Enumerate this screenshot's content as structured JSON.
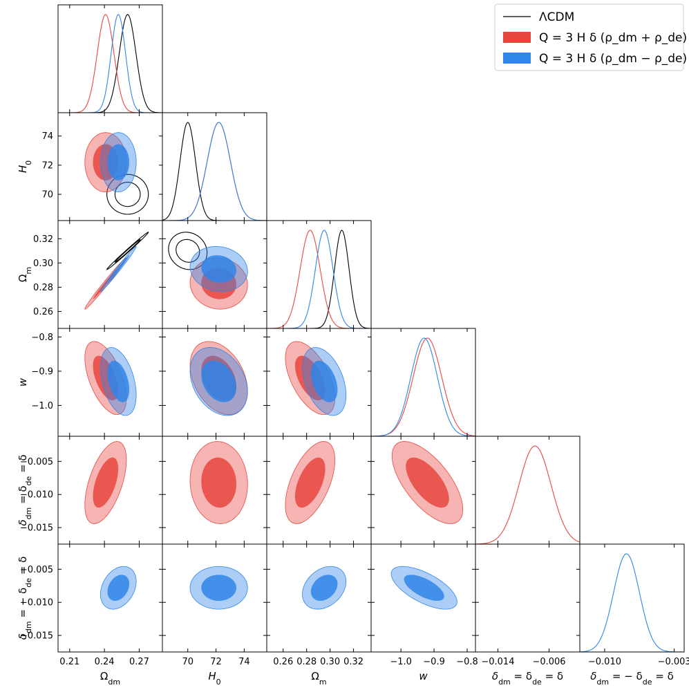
{
  "chart_data": {
    "type": "triangle",
    "title": "",
    "parameters": [
      {
        "key": "om_dm",
        "label": "Ω_dm",
        "range": [
          0.2,
          0.29
        ],
        "ticks": [
          0.21,
          0.24,
          0.27
        ],
        "tick_labels": [
          "0.21",
          "0.24",
          "0.27"
        ]
      },
      {
        "key": "h0",
        "label": "H_0",
        "range": [
          68.2,
          75.6
        ],
        "ticks": [
          70,
          72,
          74
        ],
        "tick_labels": [
          "70",
          "72",
          "74"
        ]
      },
      {
        "key": "om_m",
        "label": "Ω_m",
        "range": [
          0.246,
          0.335
        ],
        "ticks": [
          0.26,
          0.28,
          0.3,
          0.32
        ],
        "tick_labels": [
          "0.26",
          "0.28",
          "0.30",
          "0.32"
        ]
      },
      {
        "key": "w",
        "label": "w",
        "range": [
          -1.09,
          -0.775
        ],
        "ticks": [
          -1.0,
          -0.9,
          -0.8
        ],
        "tick_labels": [
          "−1.0",
          "−0.9",
          "−0.8"
        ]
      },
      {
        "key": "d1",
        "label": "δ_dm = δ_de = δ",
        "range": [
          -0.0175,
          -0.0012
        ],
        "ticks": [
          -0.014,
          -0.006
        ],
        "y_ticks": [
          -0.015,
          -0.01,
          -0.005
        ],
        "tick_labels": [
          "−0.014",
          "−0.006"
        ],
        "y_tick_labels": [
          "−0.015",
          "−0.010",
          "−0.005"
        ]
      },
      {
        "key": "d2",
        "label": "δ_dm = − δ_de = δ",
        "range": [
          -0.0125,
          -0.002
        ],
        "ticks": [
          -0.01,
          -0.003
        ],
        "y_ticks": [
          -0.015,
          -0.01,
          -0.005
        ],
        "y_range": [
          -0.0175,
          -0.0012
        ],
        "tick_labels": [
          "−0.010",
          "−0.003"
        ],
        "y_tick_labels": [
          "−0.015",
          "−0.010",
          "−0.005"
        ]
      }
    ],
    "series": [
      {
        "name": "ΛCDM",
        "style": "line",
        "color": "#000000",
        "params": [
          "om_dm",
          "h0",
          "om_m",
          "w"
        ],
        "mean": {
          "om_dm": 0.26,
          "h0": 70.0,
          "om_m": 0.31
        },
        "sigma": {
          "om_dm": 0.0072,
          "h0": 0.55,
          "om_m": 0.0062
        },
        "corr": {
          "om_dm|h0": 0.0,
          "om_dm|om_m": 0.995,
          "h0|om_m": -0.1
        }
      },
      {
        "name": "Q = 3 H δ (ρ_dm + ρ_de)",
        "style": "filled",
        "color": "#e8473e",
        "params": [
          "om_dm",
          "h0",
          "om_m",
          "w",
          "d1"
        ],
        "mean": {
          "om_dm": 0.241,
          "h0": 72.2,
          "om_m": 0.283,
          "w": -0.92,
          "d1": -0.0082
        },
        "sigma": {
          "om_dm": 0.0072,
          "h0": 0.82,
          "om_m": 0.0085,
          "w": 0.043,
          "d1": 0.0025
        },
        "corr": {
          "om_dm|h0": 0.0,
          "om_dm|om_m": 0.99,
          "om_dm|w": -0.55,
          "om_dm|d1": 0.55,
          "h0|om_m": -0.05,
          "h0|w": -0.35,
          "h0|d1": -0.05,
          "om_m|w": -0.55,
          "om_m|d1": 0.55,
          "w|d1": -0.65
        }
      },
      {
        "name": "Q = 3 H δ (ρ_dm − ρ_de)",
        "style": "filled",
        "color": "#2f85e8",
        "params": [
          "om_dm",
          "h0",
          "om_m",
          "w",
          "d2"
        ],
        "mean": {
          "om_dm": 0.252,
          "h0": 72.2,
          "om_m": 0.295,
          "w": -0.93,
          "d2": -0.0078
        },
        "sigma": {
          "om_dm": 0.0062,
          "h0": 0.82,
          "om_m": 0.0075,
          "w": 0.04,
          "d2": 0.0013
        },
        "corr": {
          "om_dm|h0": 0.0,
          "om_dm|om_m": 0.99,
          "om_dm|w": -0.4,
          "om_dm|d2": 0.3,
          "h0|om_m": -0.1,
          "h0|w": -0.3,
          "h0|d2": 0.0,
          "om_m|w": -0.4,
          "om_m|d2": 0.3,
          "w|d2": -0.65
        }
      }
    ],
    "legend": {
      "position": "top-right",
      "entries": [
        "ΛCDM",
        "Q = 3 H δ (ρ_dm + ρ_de)",
        "Q = 3 H δ (ρ_dm − ρ_de)"
      ]
    }
  }
}
